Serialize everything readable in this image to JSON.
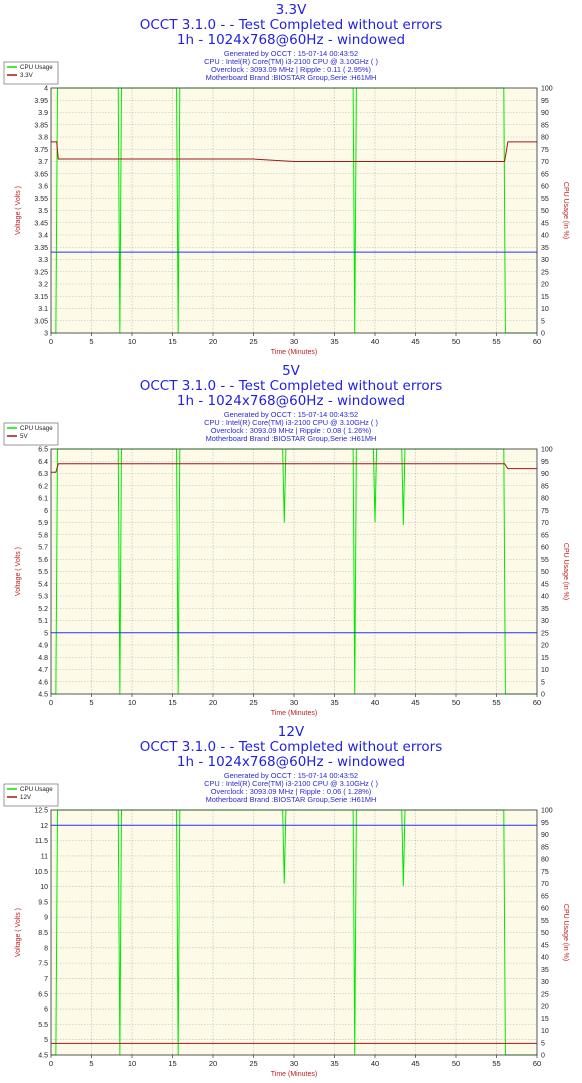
{
  "panels": [
    {
      "rail": "3.3V",
      "header": "OCCT 3.1.0 -  - Test Completed without errors",
      "resolution": "1h - 1024x768@60Hz - windowed",
      "info": [
        "Generated by OCCT : 15-07-14 00:43:52",
        "CPU : Intel(R) Core(TM) i3-2100 CPU @ 3.10GHz (  )",
        "Overclock : 3093.09 MHz | Ripple : 0.11 ( 2.95%)",
        "Motherboard Brand :BIOSTAR Group,Serie :H61MH"
      ]
    },
    {
      "rail": "5V",
      "header": "OCCT 3.1.0 -  - Test Completed without errors",
      "resolution": "1h - 1024x768@60Hz - windowed",
      "info": [
        "Generated by OCCT : 15-07-14 00:43:52",
        "CPU : Intel(R) Core(TM) i3-2100 CPU @ 3.10GHz (  )",
        "Overclock : 3093.09 MHz | Ripple : 0.08 ( 1.26%)",
        "Motherboard Brand :BIOSTAR Group,Serie :H61MH"
      ]
    },
    {
      "rail": "12V",
      "header": "OCCT 3.1.0 -  - Test Completed without errors",
      "resolution": "1h - 1024x768@60Hz - windowed",
      "info": [
        "Generated by OCCT : 15-07-14 00:43:52",
        "CPU : Intel(R) Core(TM) i3-2100 CPU @ 3.10GHz (  )",
        "Overclock : 3093.09 MHz | Ripple : 0.06 ( 1.28%)",
        "Motherboard Brand :BIOSTAR Group,Serie :H61MH"
      ]
    }
  ],
  "colors": {
    "title": "#1f1fe0",
    "plot_bg": "#fdfbe8",
    "grid": "#b7b7b7",
    "cpu_line": "#00e800",
    "voltage_line": "#a01818",
    "spec_line": "#2233ff",
    "axis_label": "#c02020",
    "tick_text": "#222222"
  },
  "chart_data": [
    {
      "type": "line",
      "xlabel": "Time (Minutes)",
      "ylabel": "Voltage ( Volts )",
      "y2label": "CPU Usage (in %)",
      "xlim": [
        0,
        60
      ],
      "ylim": [
        3.0,
        4.0
      ],
      "y2lim": [
        0,
        100
      ],
      "xticks": [
        0,
        5,
        10,
        15,
        20,
        25,
        30,
        35,
        40,
        45,
        50,
        55,
        60
      ],
      "yticks": [
        "4",
        "3.95",
        "3.9",
        "3.85",
        "3.8",
        "3.75",
        "3.7",
        "3.65",
        "3.6",
        "3.55",
        "3.5",
        "3.45",
        "3.4",
        "3.35",
        "3.3",
        "3.25",
        "3.2",
        "3.15",
        "3.1",
        "3.05",
        "3"
      ],
      "y2ticks": [
        100,
        95,
        90,
        85,
        80,
        75,
        70,
        65,
        60,
        55,
        50,
        45,
        40,
        35,
        30,
        25,
        20,
        15,
        10,
        5,
        0
      ],
      "grid": true,
      "legend_position": "top-left",
      "series": [
        {
          "name": "CPU Usage",
          "axis": "right",
          "x": [
            0,
            0.6,
            0.8,
            1.0,
            8.3,
            8.5,
            8.7,
            15.5,
            15.7,
            15.9,
            37.3,
            37.5,
            37.7,
            55.9,
            56.1,
            56.3,
            60
          ],
          "y": [
            0,
            0,
            100,
            100,
            100,
            0,
            100,
            100,
            0,
            100,
            100,
            0,
            100,
            100,
            0,
            0,
            0
          ]
        },
        {
          "name": "3.3V",
          "axis": "left",
          "x": [
            0,
            0.7,
            0.9,
            5,
            10,
            15,
            20,
            25,
            30,
            35,
            40,
            45,
            50,
            55,
            56.0,
            56.4,
            60
          ],
          "y": [
            3.78,
            3.78,
            3.71,
            3.71,
            3.71,
            3.71,
            3.71,
            3.71,
            3.7,
            3.7,
            3.7,
            3.7,
            3.7,
            3.7,
            3.7,
            3.78,
            3.78
          ]
        },
        {
          "axis": "left",
          "x": [
            0,
            60
          ],
          "y": [
            3.33,
            3.33
          ]
        }
      ]
    },
    {
      "type": "line",
      "xlabel": "Time (Minutes)",
      "ylabel": "Voltage ( Volts )",
      "y2label": "CPU Usage (in %)",
      "xlim": [
        0,
        60
      ],
      "ylim": [
        4.5,
        6.5
      ],
      "y2lim": [
        0,
        100
      ],
      "xticks": [
        0,
        5,
        10,
        15,
        20,
        25,
        30,
        35,
        40,
        45,
        50,
        55,
        60
      ],
      "yticks": [
        "6.5",
        "6.4",
        "6.3",
        "6.2",
        "6.1",
        "6",
        "5.9",
        "5.8",
        "5.7",
        "5.6",
        "5.5",
        "5.4",
        "5.3",
        "5.2",
        "5.1",
        "5",
        "4.9",
        "4.8",
        "4.7",
        "4.6",
        "4.5"
      ],
      "y2ticks": [
        100,
        95,
        90,
        85,
        80,
        75,
        70,
        65,
        60,
        55,
        50,
        45,
        40,
        35,
        30,
        25,
        20,
        15,
        10,
        5,
        0
      ],
      "grid": true,
      "legend_position": "top-left",
      "series": [
        {
          "name": "CPU Usage",
          "axis": "right",
          "x": [
            0,
            0.6,
            0.8,
            1.0,
            8.3,
            8.5,
            8.7,
            15.5,
            15.7,
            15.9,
            28.6,
            28.8,
            29.0,
            37.3,
            37.5,
            37.7,
            39.8,
            40.0,
            40.2,
            43.3,
            43.5,
            43.7,
            55.9,
            56.1,
            56.3,
            60
          ],
          "y": [
            0,
            0,
            100,
            100,
            100,
            0,
            100,
            100,
            0,
            100,
            100,
            70,
            100,
            100,
            0,
            100,
            100,
            70,
            100,
            100,
            69,
            100,
            100,
            0,
            0,
            0
          ]
        },
        {
          "name": "5V",
          "axis": "left",
          "x": [
            0,
            0.6,
            0.9,
            5,
            10,
            15,
            20,
            25,
            30,
            35,
            40,
            45,
            50,
            55,
            56.0,
            56.4,
            60
          ],
          "y": [
            6.31,
            6.31,
            6.38,
            6.38,
            6.38,
            6.38,
            6.38,
            6.38,
            6.38,
            6.38,
            6.38,
            6.38,
            6.38,
            6.38,
            6.38,
            6.34,
            6.34
          ]
        },
        {
          "axis": "left",
          "x": [
            0,
            60
          ],
          "y": [
            5.0,
            5.0
          ]
        }
      ]
    },
    {
      "type": "line",
      "xlabel": "Time (Minutes)",
      "ylabel": "Voltage ( Volts )",
      "y2label": "CPU Usage (in %)",
      "xlim": [
        0,
        60
      ],
      "ylim": [
        4.5,
        12.5
      ],
      "y2lim": [
        0,
        100
      ],
      "xticks": [
        0,
        5,
        10,
        15,
        20,
        25,
        30,
        35,
        40,
        45,
        50,
        55,
        60
      ],
      "yticks": [
        "12.5",
        "12",
        "11.5",
        "11",
        "10.5",
        "10",
        "9.5",
        "9",
        "8.5",
        "8",
        "7.5",
        "7",
        "6.5",
        "6",
        "5.5",
        "5",
        "4.5"
      ],
      "y2ticks": [
        100,
        95,
        90,
        85,
        80,
        75,
        70,
        65,
        60,
        55,
        50,
        45,
        40,
        35,
        30,
        25,
        20,
        15,
        10,
        5,
        0
      ],
      "grid": true,
      "legend_position": "top-left",
      "series": [
        {
          "name": "CPU Usage",
          "axis": "right",
          "x": [
            0,
            0.6,
            0.8,
            1.0,
            8.3,
            8.5,
            8.7,
            15.5,
            15.7,
            15.9,
            28.6,
            28.8,
            29.0,
            37.3,
            37.5,
            37.7,
            43.3,
            43.5,
            43.7,
            55.9,
            56.1,
            56.3,
            60
          ],
          "y": [
            0,
            0,
            100,
            100,
            100,
            0,
            100,
            100,
            0,
            100,
            100,
            70,
            100,
            100,
            0,
            100,
            100,
            69,
            100,
            100,
            0,
            0,
            0
          ]
        },
        {
          "name": "12V",
          "axis": "left",
          "x": [
            0,
            60
          ],
          "y": [
            4.88,
            4.88
          ]
        },
        {
          "axis": "left",
          "x": [
            0,
            60
          ],
          "y": [
            12.0,
            12.0
          ]
        }
      ]
    }
  ]
}
